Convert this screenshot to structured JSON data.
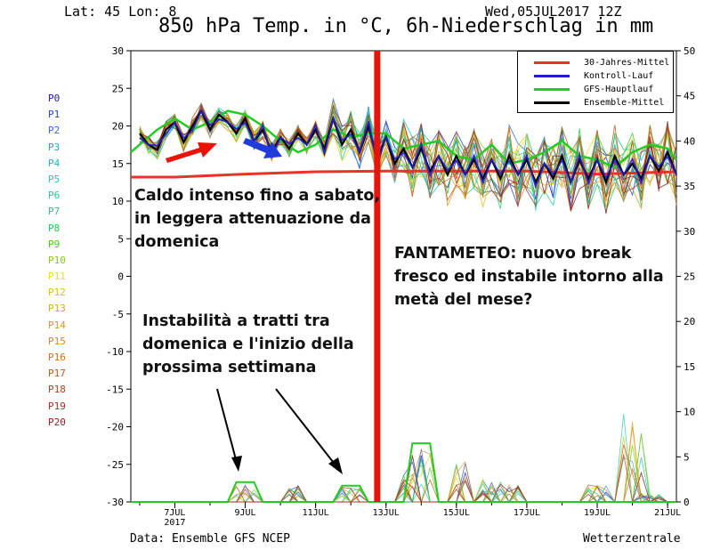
{
  "header": {
    "latlon": "Lat: 45 Lon: 8",
    "date": "Wed,05JUL2017 12Z",
    "title": "850 hPa Temp. in °C, 6h-Niederschlag in mm"
  },
  "footer": {
    "source": "Data: Ensemble GFS NCEP",
    "brand": "Wetterzentrale"
  },
  "members": [
    "P0",
    "P1",
    "P2",
    "P3",
    "P4",
    "P5",
    "P6",
    "P7",
    "P8",
    "P9",
    "P10",
    "P11",
    "P12",
    "P13",
    "P14",
    "P15",
    "P16",
    "P17",
    "P18",
    "P19",
    "P20"
  ],
  "member_colors": [
    "#1a1aa0",
    "#2244c8",
    "#3366dd",
    "#22a0c8",
    "#22b4c8",
    "#22c8b4",
    "#22c89a",
    "#22c878",
    "#22c850",
    "#44c822",
    "#88c822",
    "#e0e020",
    "#d8c020",
    "#d8a820",
    "#d89820",
    "#d08820",
    "#c87020",
    "#c05820",
    "#b04020",
    "#a03020",
    "#902020"
  ],
  "legend": [
    {
      "label": "30-Jahres-Mittel",
      "color": "#e8322a"
    },
    {
      "label": "Kontroll-Lauf",
      "color": "#1f1fd0"
    },
    {
      "label": "GFS-Hauptlauf",
      "color": "#22cc22"
    },
    {
      "label": "Ensemble-Mittel",
      "color": "#000000"
    }
  ],
  "annotations": [
    "Caldo intenso fino a sabato,\nin leggera attenuazione da\ndomenica",
    "FANTAMETEO: nuovo break\nfresco ed instabile intorno alla\nmetà del mese?",
    "Instabilità a tratti tra\ndomenica e l'inizio della\nprossima settimana"
  ],
  "chart_data": {
    "type": "line",
    "title": "850 hPa Temp. in °C, 6h-Niederschlag in mm",
    "ylim_left": [
      -30,
      30
    ],
    "yticks_left": [
      30,
      25,
      20,
      15,
      10,
      5,
      0,
      -5,
      -10,
      -15,
      -20,
      -25,
      -30
    ],
    "ylim_right": [
      0,
      50
    ],
    "yticks_right": [
      50,
      45,
      40,
      35,
      30,
      25,
      20,
      15,
      10,
      5,
      0
    ],
    "xlim_days": [
      5.75,
      21.25
    ],
    "xticks": [
      {
        "day": 7,
        "label": "7JUL",
        "sub": "2017"
      },
      {
        "day": 9,
        "label": "9JUL",
        "sub": ""
      },
      {
        "day": 11,
        "label": "11JUL",
        "sub": ""
      },
      {
        "day": 13,
        "label": "13JUL",
        "sub": ""
      },
      {
        "day": 15,
        "label": "15JUL",
        "sub": ""
      },
      {
        "day": 17,
        "label": "17JUL",
        "sub": ""
      },
      {
        "day": 19,
        "label": "19JUL",
        "sub": ""
      },
      {
        "day": 21,
        "label": "21JUL",
        "sub": ""
      }
    ],
    "series": [
      {
        "name": "30-Jahres-Mittel",
        "color": "#e8322a",
        "x": [
          5.75,
          7,
          9,
          11,
          13,
          15,
          17,
          19,
          21.25
        ],
        "y": [
          13.2,
          13.2,
          13.6,
          13.9,
          14.0,
          14.0,
          14.0,
          13.6,
          13.9
        ]
      },
      {
        "name": "GFS-Hauptlauf",
        "color": "#22cc22",
        "x": [
          5.75,
          6,
          6.5,
          7,
          7.5,
          8,
          8.5,
          9,
          9.5,
          10,
          10.5,
          11,
          11.5,
          12,
          12.5,
          13,
          13.5,
          14,
          14.5,
          15,
          15.5,
          16,
          16.5,
          17,
          17.5,
          18,
          18.5,
          19,
          19.5,
          20,
          20.5,
          21,
          21.25
        ],
        "y": [
          16.5,
          17.5,
          19.5,
          21,
          19.5,
          20.5,
          22,
          21.5,
          20,
          18,
          16.5,
          17.5,
          19.5,
          18.5,
          19,
          19,
          17,
          17.5,
          18,
          16,
          15.5,
          17.5,
          15,
          15.5,
          16.5,
          18,
          16,
          15.5,
          14.5,
          16.5,
          17.5,
          17,
          15.5
        ]
      },
      {
        "name": "Ensemble-Mittel",
        "color": "#000000",
        "x": [
          6,
          6.25,
          6.5,
          6.75,
          7,
          7.25,
          7.5,
          7.75,
          8,
          8.25,
          8.5,
          8.75,
          9,
          9.25,
          9.5,
          9.75,
          10,
          10.25,
          10.5,
          10.75,
          11,
          11.25,
          11.5,
          11.75,
          12,
          12.25,
          12.5,
          12.75,
          13,
          13.25,
          13.5,
          13.75,
          14,
          14.25,
          14.5,
          14.75,
          15,
          15.25,
          15.5,
          15.75,
          16,
          16.25,
          16.5,
          16.75,
          17,
          17.25,
          17.5,
          17.75,
          18,
          18.25,
          18.5,
          18.75,
          19,
          19.25,
          19.5,
          19.75,
          20,
          20.25,
          20.5,
          20.75,
          21,
          21.25
        ],
        "y": [
          19,
          17.5,
          16.8,
          19.5,
          20.5,
          17.8,
          20,
          22,
          19.5,
          21.5,
          20.5,
          19,
          21,
          18,
          19.5,
          16.5,
          18.5,
          17,
          19,
          17.5,
          19.5,
          17,
          21,
          17.5,
          19.5,
          16.5,
          20,
          15.5,
          18.5,
          15,
          17,
          14.5,
          17,
          14,
          16,
          13.5,
          16,
          13.5,
          15.5,
          13,
          15.5,
          13,
          16,
          13.5,
          15.5,
          12.5,
          15,
          13,
          16,
          12.5,
          15.5,
          13,
          15.5,
          12.5,
          16,
          13.5,
          15,
          13,
          16,
          14,
          16.5,
          13.5
        ]
      }
    ],
    "precip_peaks": [
      {
        "x": 9.0,
        "y": 2.0
      },
      {
        "x": 10.3,
        "y": 2.0
      },
      {
        "x": 12.0,
        "y": 1.8
      },
      {
        "x": 13.6,
        "y": 3.0
      },
      {
        "x": 14.0,
        "y": 6.0
      },
      {
        "x": 15.2,
        "y": 4.5
      },
      {
        "x": 16.0,
        "y": 2.5
      },
      {
        "x": 16.7,
        "y": 2.0
      },
      {
        "x": 19.0,
        "y": 2.0
      },
      {
        "x": 20.0,
        "y": 10.0
      },
      {
        "x": 20.5,
        "y": 1.0
      }
    ],
    "vertical_marker_x": 12.75,
    "grid": false
  }
}
